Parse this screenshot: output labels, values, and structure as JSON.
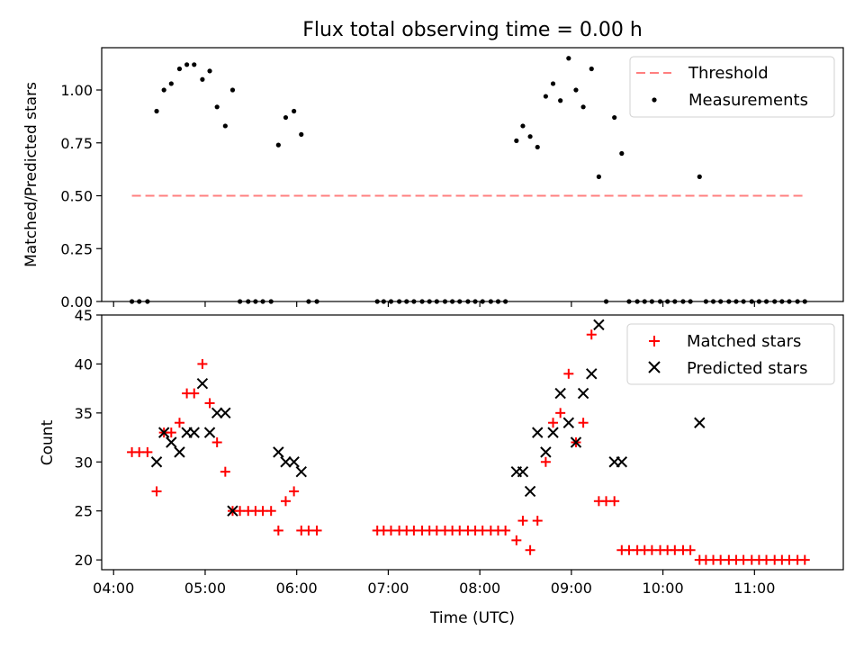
{
  "chart_data": [
    {
      "type": "scatter",
      "title": "Flux total observing time = 0.00 h",
      "xlabel": "",
      "ylabel": "Matched/Predicted stars",
      "xlim_hours": [
        3.87,
        11.97
      ],
      "ylim": [
        0,
        1.2
      ],
      "yticks": [
        0.0,
        0.25,
        0.5,
        0.75,
        1.0
      ],
      "ytick_labels": [
        "0.00",
        "0.25",
        "0.50",
        "0.75",
        "1.00"
      ],
      "legend": {
        "placement": "top-right"
      },
      "threshold": {
        "name": "Threshold",
        "value": 0.5,
        "x_range_hours": [
          4.2,
          11.57
        ],
        "color": "#ff7f7f"
      },
      "series": [
        {
          "name": "Measurements",
          "color": "#000000",
          "points": [
            [
              4.2,
              0.0
            ],
            [
              4.28,
              0.0
            ],
            [
              4.37,
              0.0
            ],
            [
              4.47,
              0.9
            ],
            [
              4.55,
              1.0
            ],
            [
              4.63,
              1.03
            ],
            [
              4.72,
              1.1
            ],
            [
              4.8,
              1.12
            ],
            [
              4.88,
              1.12
            ],
            [
              4.97,
              1.05
            ],
            [
              5.05,
              1.09
            ],
            [
              5.13,
              0.92
            ],
            [
              5.22,
              0.83
            ],
            [
              5.3,
              1.0
            ],
            [
              5.38,
              0.0
            ],
            [
              5.47,
              0.0
            ],
            [
              5.55,
              0.0
            ],
            [
              5.63,
              0.0
            ],
            [
              5.72,
              0.0
            ],
            [
              5.8,
              0.74
            ],
            [
              5.88,
              0.87
            ],
            [
              5.97,
              0.9
            ],
            [
              6.05,
              0.79
            ],
            [
              6.13,
              0.0
            ],
            [
              6.22,
              0.0
            ],
            [
              6.88,
              0.0
            ],
            [
              6.95,
              0.0
            ],
            [
              7.03,
              0.0
            ],
            [
              7.12,
              0.0
            ],
            [
              7.2,
              0.0
            ],
            [
              7.28,
              0.0
            ],
            [
              7.37,
              0.0
            ],
            [
              7.45,
              0.0
            ],
            [
              7.53,
              0.0
            ],
            [
              7.62,
              0.0
            ],
            [
              7.7,
              0.0
            ],
            [
              7.78,
              0.0
            ],
            [
              7.87,
              0.0
            ],
            [
              7.95,
              0.0
            ],
            [
              8.03,
              0.0
            ],
            [
              8.12,
              0.0
            ],
            [
              8.2,
              0.0
            ],
            [
              8.28,
              0.0
            ],
            [
              8.4,
              0.76
            ],
            [
              8.47,
              0.83
            ],
            [
              8.55,
              0.78
            ],
            [
              8.63,
              0.73
            ],
            [
              8.72,
              0.97
            ],
            [
              8.8,
              1.03
            ],
            [
              8.88,
              0.95
            ],
            [
              8.97,
              1.15
            ],
            [
              9.05,
              1.0
            ],
            [
              9.13,
              0.92
            ],
            [
              9.22,
              1.1
            ],
            [
              9.3,
              0.59
            ],
            [
              9.38,
              0.0
            ],
            [
              9.47,
              0.87
            ],
            [
              9.55,
              0.7
            ],
            [
              9.63,
              0.0
            ],
            [
              9.72,
              0.0
            ],
            [
              9.8,
              0.0
            ],
            [
              9.88,
              0.0
            ],
            [
              9.97,
              0.0
            ],
            [
              10.05,
              0.0
            ],
            [
              10.13,
              0.0
            ],
            [
              10.22,
              0.0
            ],
            [
              10.3,
              0.0
            ],
            [
              10.4,
              0.59
            ],
            [
              10.47,
              0.0
            ],
            [
              10.55,
              0.0
            ],
            [
              10.63,
              0.0
            ],
            [
              10.72,
              0.0
            ],
            [
              10.8,
              0.0
            ],
            [
              10.88,
              0.0
            ],
            [
              10.97,
              0.0
            ],
            [
              11.05,
              0.0
            ],
            [
              11.13,
              0.0
            ],
            [
              11.22,
              0.0
            ],
            [
              11.3,
              0.0
            ],
            [
              11.38,
              0.0
            ],
            [
              11.47,
              0.0
            ],
            [
              11.55,
              0.0
            ]
          ]
        }
      ]
    },
    {
      "type": "scatter",
      "title": "",
      "xlabel": "Time (UTC)",
      "ylabel": "Count",
      "xlim_hours": [
        3.87,
        11.97
      ],
      "ylim": [
        19,
        45
      ],
      "yticks": [
        20,
        25,
        30,
        35,
        40,
        45
      ],
      "xticks_hours": [
        4,
        5,
        6,
        7,
        8,
        9,
        10,
        11
      ],
      "xtick_labels": [
        "04:00",
        "05:00",
        "06:00",
        "07:00",
        "08:00",
        "09:00",
        "10:00",
        "11:00"
      ],
      "legend": {
        "placement": "top-right"
      },
      "series": [
        {
          "name": "Matched stars",
          "marker": "plus",
          "color": "#ff0000",
          "points": [
            [
              4.2,
              31
            ],
            [
              4.28,
              31
            ],
            [
              4.37,
              31
            ],
            [
              4.47,
              27
            ],
            [
              4.55,
              33
            ],
            [
              4.63,
              33
            ],
            [
              4.72,
              34
            ],
            [
              4.8,
              37
            ],
            [
              4.88,
              37
            ],
            [
              4.97,
              40
            ],
            [
              5.05,
              36
            ],
            [
              5.13,
              32
            ],
            [
              5.22,
              29
            ],
            [
              5.3,
              25
            ],
            [
              5.38,
              25
            ],
            [
              5.47,
              25
            ],
            [
              5.55,
              25
            ],
            [
              5.63,
              25
            ],
            [
              5.72,
              25
            ],
            [
              5.8,
              23
            ],
            [
              5.88,
              26
            ],
            [
              5.97,
              27
            ],
            [
              6.05,
              23
            ],
            [
              6.13,
              23
            ],
            [
              6.22,
              23
            ],
            [
              6.88,
              23
            ],
            [
              6.95,
              23
            ],
            [
              7.03,
              23
            ],
            [
              7.12,
              23
            ],
            [
              7.2,
              23
            ],
            [
              7.28,
              23
            ],
            [
              7.37,
              23
            ],
            [
              7.45,
              23
            ],
            [
              7.53,
              23
            ],
            [
              7.62,
              23
            ],
            [
              7.7,
              23
            ],
            [
              7.78,
              23
            ],
            [
              7.87,
              23
            ],
            [
              7.95,
              23
            ],
            [
              8.03,
              23
            ],
            [
              8.12,
              23
            ],
            [
              8.2,
              23
            ],
            [
              8.28,
              23
            ],
            [
              8.4,
              22
            ],
            [
              8.47,
              24
            ],
            [
              8.55,
              21
            ],
            [
              8.63,
              24
            ],
            [
              8.72,
              30
            ],
            [
              8.8,
              34
            ],
            [
              8.88,
              35
            ],
            [
              8.97,
              39
            ],
            [
              9.05,
              32
            ],
            [
              9.13,
              34
            ],
            [
              9.22,
              43
            ],
            [
              9.3,
              26
            ],
            [
              9.38,
              26
            ],
            [
              9.47,
              26
            ],
            [
              9.55,
              21
            ],
            [
              9.63,
              21
            ],
            [
              9.72,
              21
            ],
            [
              9.8,
              21
            ],
            [
              9.88,
              21
            ],
            [
              9.97,
              21
            ],
            [
              10.05,
              21
            ],
            [
              10.13,
              21
            ],
            [
              10.22,
              21
            ],
            [
              10.3,
              21
            ],
            [
              10.4,
              20
            ],
            [
              10.47,
              20
            ],
            [
              10.55,
              20
            ],
            [
              10.63,
              20
            ],
            [
              10.72,
              20
            ],
            [
              10.8,
              20
            ],
            [
              10.88,
              20
            ],
            [
              10.97,
              20
            ],
            [
              11.05,
              20
            ],
            [
              11.13,
              20
            ],
            [
              11.22,
              20
            ],
            [
              11.3,
              20
            ],
            [
              11.38,
              20
            ],
            [
              11.47,
              20
            ],
            [
              11.55,
              20
            ]
          ]
        },
        {
          "name": "Predicted stars",
          "marker": "x",
          "color": "#000000",
          "points": [
            [
              4.47,
              30
            ],
            [
              4.55,
              33
            ],
            [
              4.63,
              32
            ],
            [
              4.72,
              31
            ],
            [
              4.8,
              33
            ],
            [
              4.88,
              33
            ],
            [
              4.97,
              38
            ],
            [
              5.05,
              33
            ],
            [
              5.13,
              35
            ],
            [
              5.22,
              35
            ],
            [
              5.3,
              25
            ],
            [
              5.8,
              31
            ],
            [
              5.88,
              30
            ],
            [
              5.97,
              30
            ],
            [
              6.05,
              29
            ],
            [
              8.4,
              29
            ],
            [
              8.47,
              29
            ],
            [
              8.55,
              27
            ],
            [
              8.63,
              33
            ],
            [
              8.72,
              31
            ],
            [
              8.8,
              33
            ],
            [
              8.88,
              37
            ],
            [
              8.97,
              34
            ],
            [
              9.05,
              32
            ],
            [
              9.13,
              37
            ],
            [
              9.22,
              39
            ],
            [
              9.3,
              44
            ],
            [
              9.47,
              30
            ],
            [
              9.55,
              30
            ],
            [
              10.4,
              34
            ]
          ]
        }
      ]
    }
  ]
}
